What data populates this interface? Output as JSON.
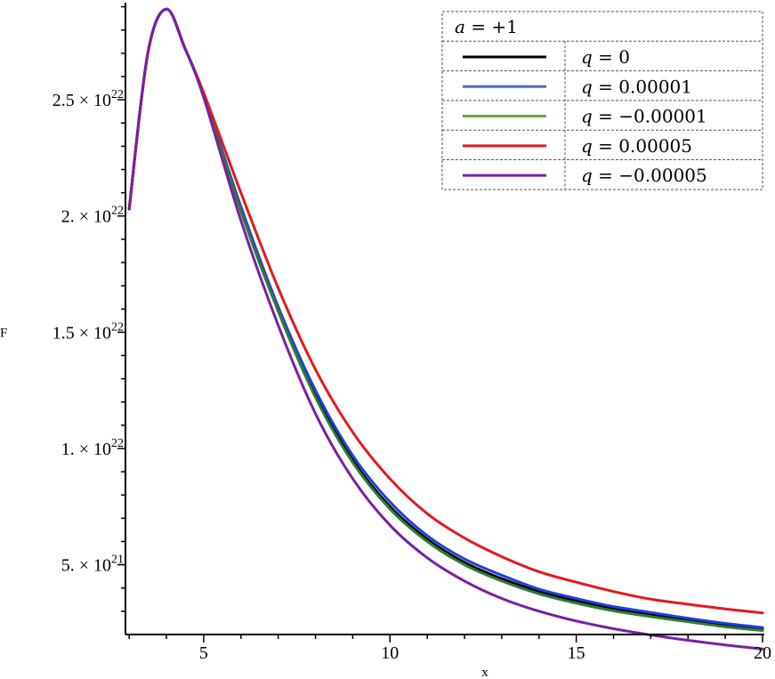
{
  "chart_data": {
    "type": "line",
    "title": "",
    "xlabel": "x",
    "ylabel": "F",
    "xlim": [
      2.9,
      20
    ],
    "ylim": [
      2000000000000000000000,
      29100000000000000000000
    ],
    "x_ticks": [
      {
        "value": 5,
        "label": "5"
      },
      {
        "value": 10,
        "label": "10"
      },
      {
        "value": 15,
        "label": "15"
      },
      {
        "value": 20,
        "label": "20"
      }
    ],
    "y_ticks": [
      {
        "value": 5e+21,
        "mantissa": "5. ×",
        "base": "10",
        "exp": "21"
      },
      {
        "value": 1e+22,
        "mantissa": "1. ×",
        "base": "10",
        "exp": "22"
      },
      {
        "value": 1.5e+22,
        "mantissa": "1.5 ×",
        "base": "10",
        "exp": "22"
      },
      {
        "value": 2e+22,
        "mantissa": "2. ×",
        "base": "10",
        "exp": "22"
      },
      {
        "value": 2.5e+22,
        "mantissa": "2.5 ×",
        "base": "10",
        "exp": "22"
      }
    ],
    "grid": false,
    "legend": {
      "placement": "top-right",
      "header": {
        "var": "a",
        "rest": " = +1"
      },
      "entries": [
        {
          "var": "q",
          "rest": " = 0",
          "color": "#000000"
        },
        {
          "var": "q",
          "rest": " = 0.00001",
          "color": "#4a6fbf"
        },
        {
          "var": "q",
          "rest": " = −0.00001",
          "color": "#6aaa3a"
        },
        {
          "var": "q",
          "rest": " = 0.00005",
          "color": "#e31a1c"
        },
        {
          "var": "q",
          "rest": " = −0.00005",
          "color": "#7b1fa2"
        }
      ]
    },
    "x": [
      3,
      3.5,
      4,
      4.5,
      5,
      6,
      7,
      8,
      9,
      10,
      11,
      12,
      13,
      14,
      15,
      16,
      17,
      18,
      19,
      20
    ],
    "series": [
      {
        "name": "q = 0",
        "color": "#000000",
        "values": [
          2.03e+22,
          2.7e+22,
          2.89e+22,
          2.72e+22,
          2.52e+22,
          2.03e+22,
          1.6e+22,
          1.23e+22,
          9.5e+21,
          7.5e+21,
          6.1e+21,
          5.1e+21,
          4.4e+21,
          3.85e+21,
          3.45e+21,
          3.1e+21,
          2.85e+21,
          2.6e+21,
          2.4e+21,
          2.23e+21
        ]
      },
      {
        "name": "q = 0.00001",
        "color": "#1f3fe0",
        "values": [
          2.03e+22,
          2.7e+22,
          2.89e+22,
          2.72e+22,
          2.52e+22,
          2.04e+22,
          1.61e+22,
          1.25e+22,
          9.7e+21,
          7.7e+21,
          6.25e+21,
          5.25e+21,
          4.55e+21,
          3.95e+21,
          3.55e+21,
          3.2e+21,
          2.95e+21,
          2.7e+21,
          2.48e+21,
          2.3e+21
        ]
      },
      {
        "name": "q = −0.00001",
        "color": "#2e7d32",
        "values": [
          2.03e+22,
          2.7e+22,
          2.89e+22,
          2.72e+22,
          2.52e+22,
          2.02e+22,
          1.59e+22,
          1.22e+22,
          9.4e+21,
          7.4e+21,
          6e+21,
          5e+21,
          4.3e+21,
          3.75e+21,
          3.35e+21,
          3.02e+21,
          2.77e+21,
          2.55e+21,
          2.33e+21,
          2.17e+21
        ]
      },
      {
        "name": "q = 0.00005",
        "color": "#e31a1c",
        "values": [
          2.03e+22,
          2.7e+22,
          2.89e+22,
          2.72e+22,
          2.53e+22,
          2.1e+22,
          1.69e+22,
          1.34e+22,
          1.07e+22,
          8.7e+21,
          7.2e+21,
          6.15e+21,
          5.35e+21,
          4.7e+21,
          4.25e+21,
          3.85e+21,
          3.52e+21,
          3.3e+21,
          3.1e+21,
          2.93e+21
        ]
      },
      {
        "name": "q = −0.00005",
        "color": "#7b1fa2",
        "values": [
          2.03e+22,
          2.7e+22,
          2.89e+22,
          2.72e+22,
          2.51e+22,
          1.98e+22,
          1.53e+22,
          1.15e+22,
          8.7e+21,
          6.7e+21,
          5.3e+21,
          4.3e+21,
          3.55e+21,
          3e+21,
          2.58e+21,
          2.25e+21,
          1.98e+21,
          1.75e+21,
          1.55e+21,
          1.38e+21
        ]
      }
    ]
  }
}
